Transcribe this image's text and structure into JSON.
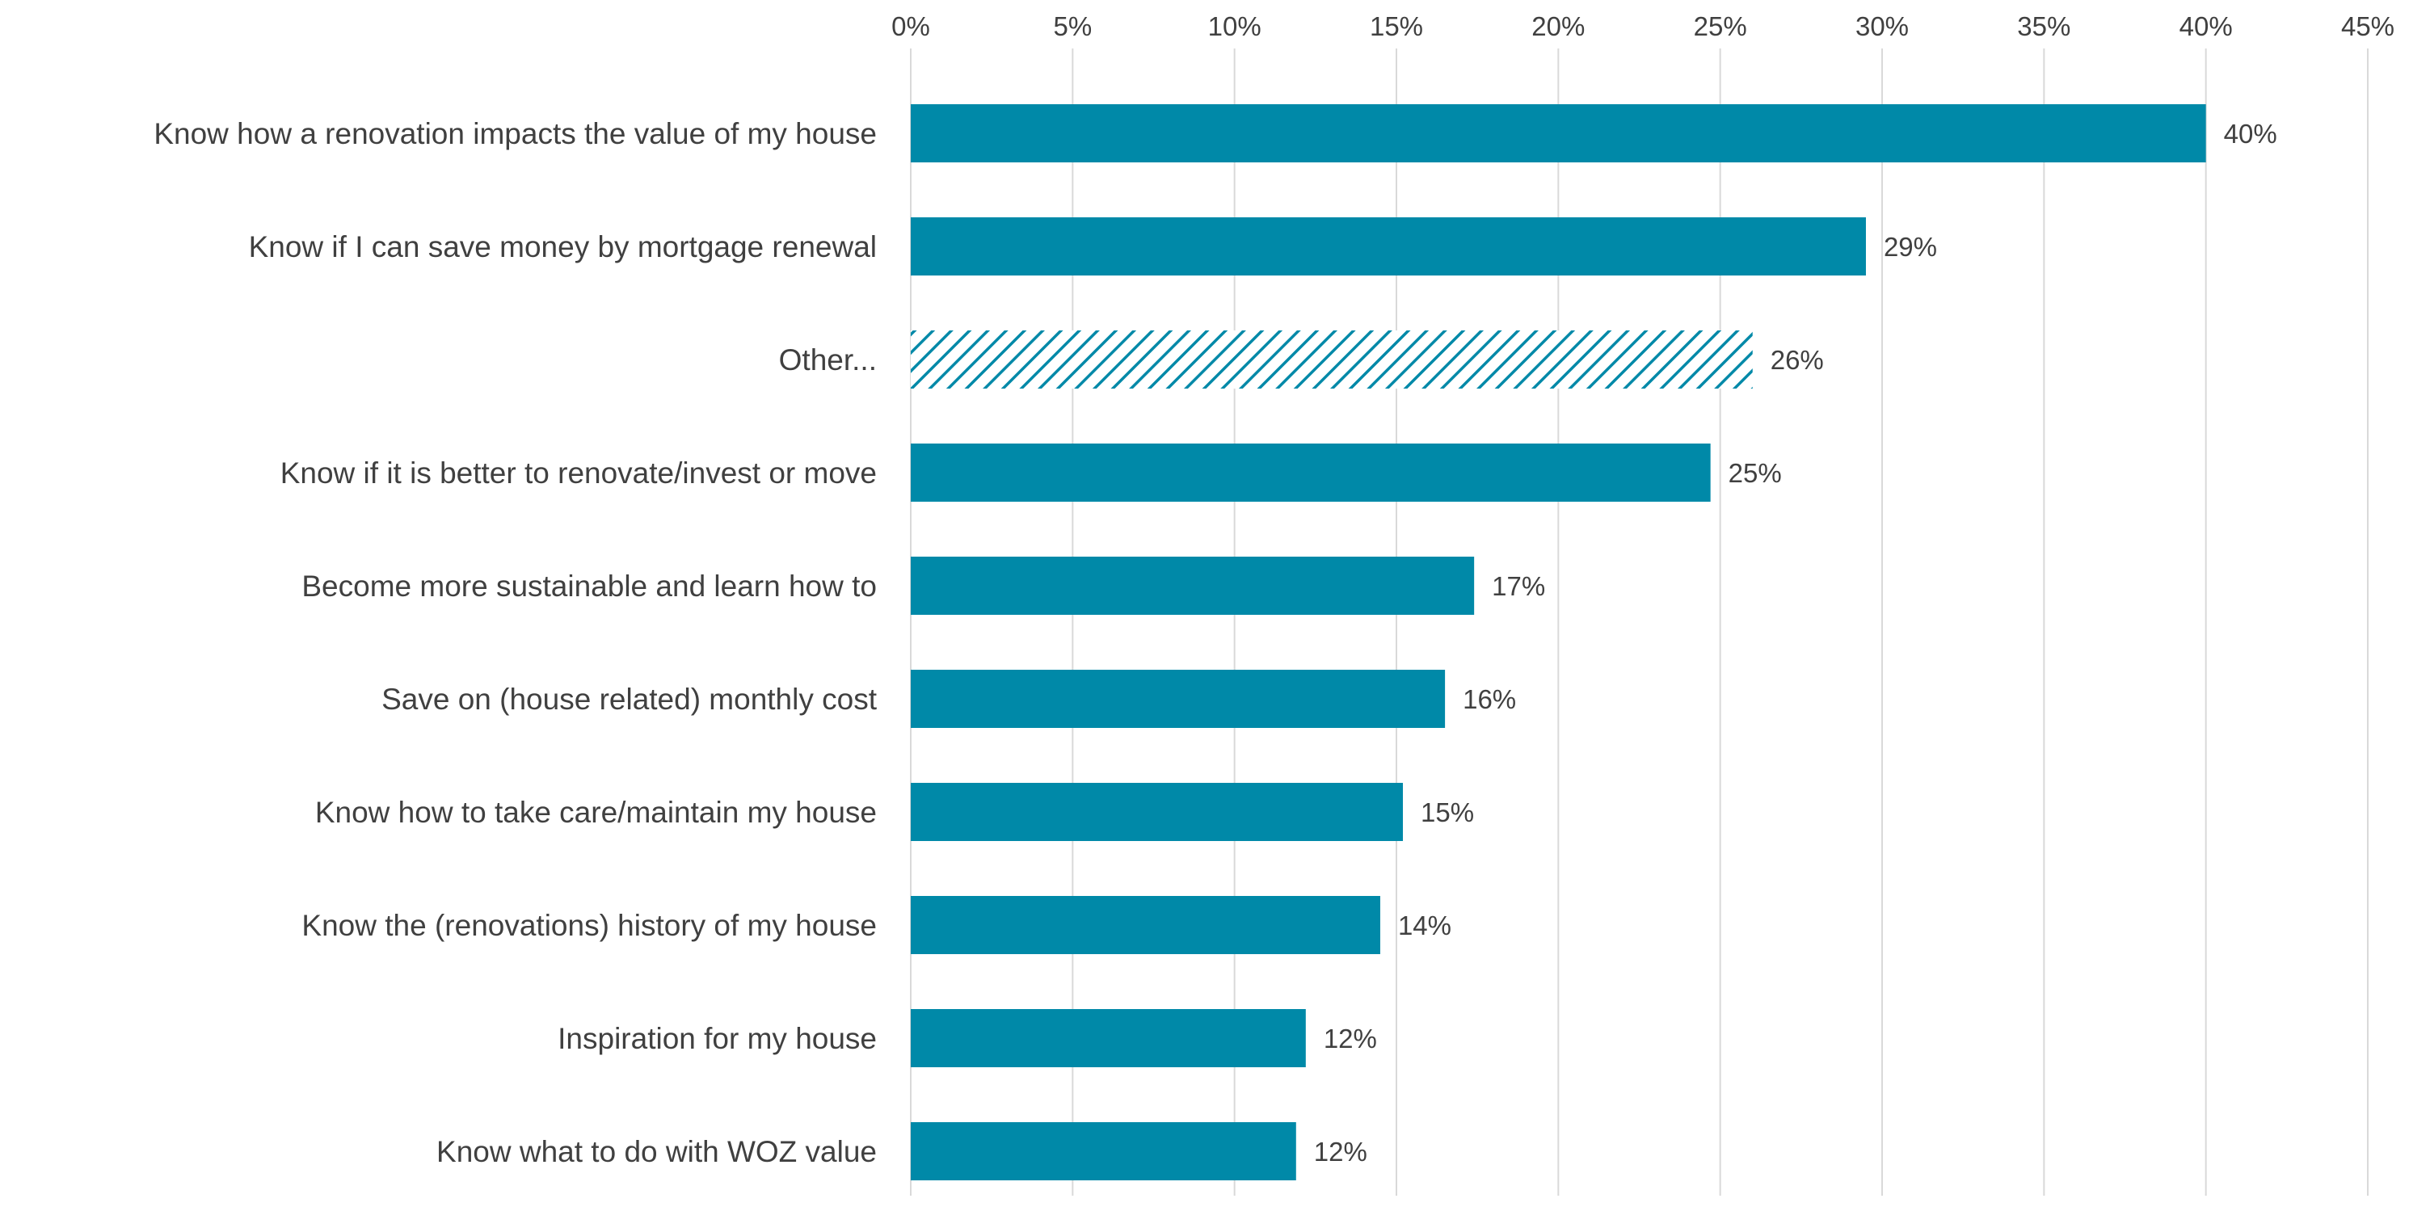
{
  "chart_data": {
    "type": "bar",
    "orientation": "horizontal",
    "title": "",
    "xlabel": "",
    "ylabel": "",
    "xlim": [
      0,
      45
    ],
    "x_ticks": [
      "0%",
      "5%",
      "10%",
      "15%",
      "20%",
      "25%",
      "30%",
      "35%",
      "40%",
      "45%"
    ],
    "x_tick_values": [
      0,
      5,
      10,
      15,
      20,
      25,
      30,
      35,
      40,
      45
    ],
    "axis_position": "top",
    "grid": true,
    "legend": "none",
    "colors": {
      "bar": "#0089a8",
      "hatched": "#0089a8"
    },
    "categories": [
      "Know how a renovation impacts the value of my house",
      "Know if I can save money by mortgage renewal",
      "Other...",
      "Know if it is better to renovate/invest or move",
      "Become more sustainable and learn how to",
      "Save on (house related) monthly cost",
      "Know how to take care/maintain my house",
      "Know the (renovations) history of my house",
      "Inspiration for my house",
      "Know what to do with WOZ value"
    ],
    "values": [
      40,
      29.5,
      26,
      24.7,
      17.4,
      16.5,
      15.2,
      14.5,
      12.2,
      11.9
    ],
    "value_labels": [
      "40%",
      "29%",
      "26%",
      "25%",
      "17%",
      "16%",
      "15%",
      "14%",
      "12%",
      "12%"
    ],
    "hatched": [
      false,
      false,
      true,
      false,
      false,
      false,
      false,
      false,
      false,
      false
    ]
  }
}
